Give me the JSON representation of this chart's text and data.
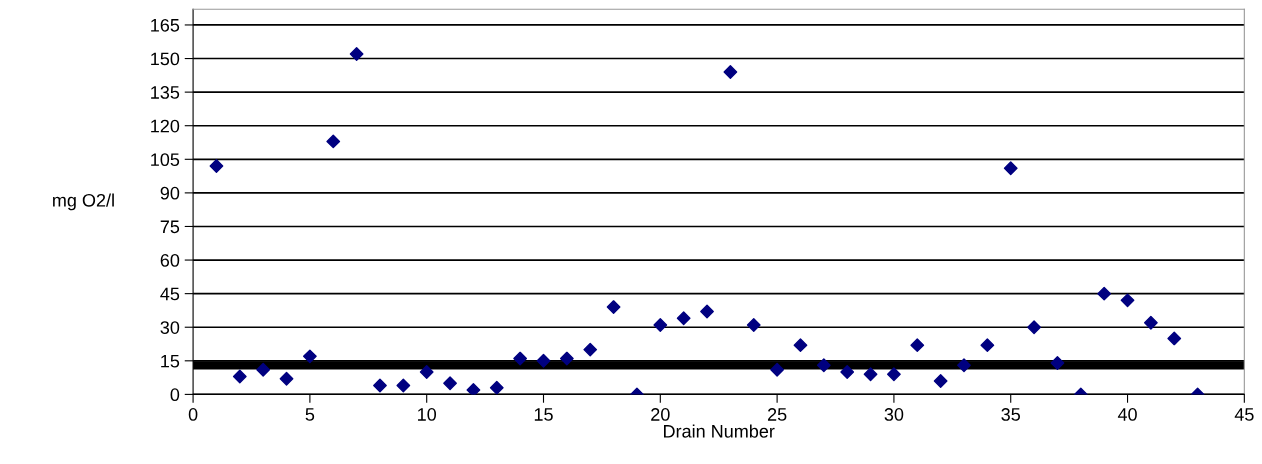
{
  "chart_data": {
    "type": "scatter",
    "xlabel": "Drain Number",
    "ylabel": "mg O2/l",
    "x": [
      1,
      2,
      3,
      4,
      5,
      6,
      7,
      8,
      9,
      10,
      11,
      12,
      13,
      14,
      15,
      16,
      17,
      18,
      19,
      20,
      21,
      22,
      23,
      24,
      25,
      26,
      27,
      28,
      29,
      30,
      31,
      32,
      33,
      34,
      35,
      36,
      37,
      38,
      39,
      40,
      41,
      42,
      43
    ],
    "series": [
      {
        "color": "#000080",
        "values": [
          102,
          8,
          11,
          7,
          17,
          113,
          152,
          4,
          4,
          10,
          5,
          2,
          3,
          16,
          15,
          16,
          20,
          39,
          0,
          31,
          34,
          37,
          144,
          31,
          11,
          22,
          13,
          10,
          9,
          9,
          22,
          6,
          13,
          22,
          101,
          30,
          14,
          0,
          45,
          42,
          32,
          25,
          0
        ]
      }
    ],
    "xlim": [
      0,
      45
    ],
    "xticks": [
      0,
      5,
      10,
      15,
      20,
      25,
      30,
      35,
      40,
      45
    ],
    "ylim": [
      0,
      172
    ],
    "yticks": [
      0,
      15,
      30,
      45,
      60,
      75,
      90,
      105,
      120,
      135,
      150,
      165
    ],
    "ref_lines": [
      {
        "axis": "y",
        "value": 13,
        "color": "#000000"
      }
    ],
    "grid": "y",
    "marker": "diamond",
    "legend": false
  }
}
